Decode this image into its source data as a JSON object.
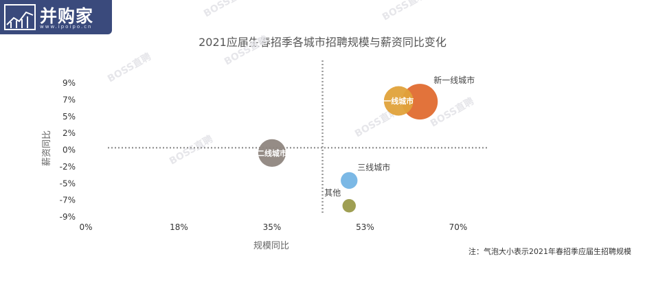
{
  "logo": {
    "text": "并购家",
    "url": "www.ipoipo.cn"
  },
  "watermark_text": "BOSS直聘",
  "footnote": "注：气泡大小表示2021年春招季应届生招聘规模",
  "chart_data": {
    "type": "scatter",
    "title": "2021应届生春招季各城市招聘规模与薪资同比变化",
    "xlabel": "规模同比",
    "ylabel": "薪资同比",
    "x_ticks": [
      "0%",
      "18%",
      "35%",
      "53%",
      "70%"
    ],
    "y_ticks": [
      "9%",
      "7%",
      "5%",
      "2%",
      "0%",
      "-2%",
      "-5%",
      "-7%",
      "-9%"
    ],
    "xlim": [
      0,
      70
    ],
    "ylim": [
      -9,
      9
    ],
    "reference_lines": {
      "x": 44.5,
      "y": 0.3
    },
    "grid": false,
    "series": [
      {
        "label": "新一线城市",
        "label_inside": false,
        "x": 62.8,
        "y": 6.5,
        "size": 100,
        "color": "#e06b30"
      },
      {
        "label": "一线城市",
        "label_inside": true,
        "x": 58.8,
        "y": 6.6,
        "size": 68,
        "color": "#e0a23a"
      },
      {
        "label": "二线城市",
        "label_inside": true,
        "x": 35.0,
        "y": -0.4,
        "size": 60,
        "color": "#8f8680"
      },
      {
        "label": "三线城市",
        "label_inside": false,
        "x": 49.5,
        "y": -4.1,
        "size": 22,
        "color": "#74b4e4"
      },
      {
        "label": "其他",
        "label_inside": false,
        "x": 49.5,
        "y": -7.5,
        "size": 14,
        "color": "#9a9a4a"
      }
    ]
  }
}
